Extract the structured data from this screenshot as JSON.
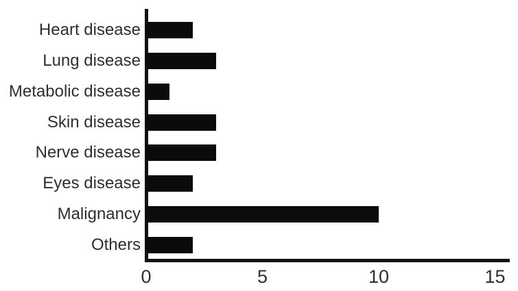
{
  "chart_data": {
    "type": "bar",
    "orientation": "horizontal",
    "title": "",
    "xlabel": "",
    "ylabel": "",
    "categories": [
      "Heart disease",
      "Lung disease",
      "Metabolic disease",
      "Skin disease",
      "Nerve disease",
      "Eyes disease",
      "Malignancy",
      "Others"
    ],
    "values": [
      2,
      3,
      1,
      3,
      3,
      2,
      10,
      2
    ],
    "xlim": [
      0,
      15
    ],
    "xticks": [
      0,
      5,
      10,
      15
    ],
    "grid": false,
    "legend": null,
    "bar_color": "#0b0b0b",
    "axis_color": "#121215",
    "text_color": "#2e2e33",
    "background_color": "#ffffff"
  }
}
